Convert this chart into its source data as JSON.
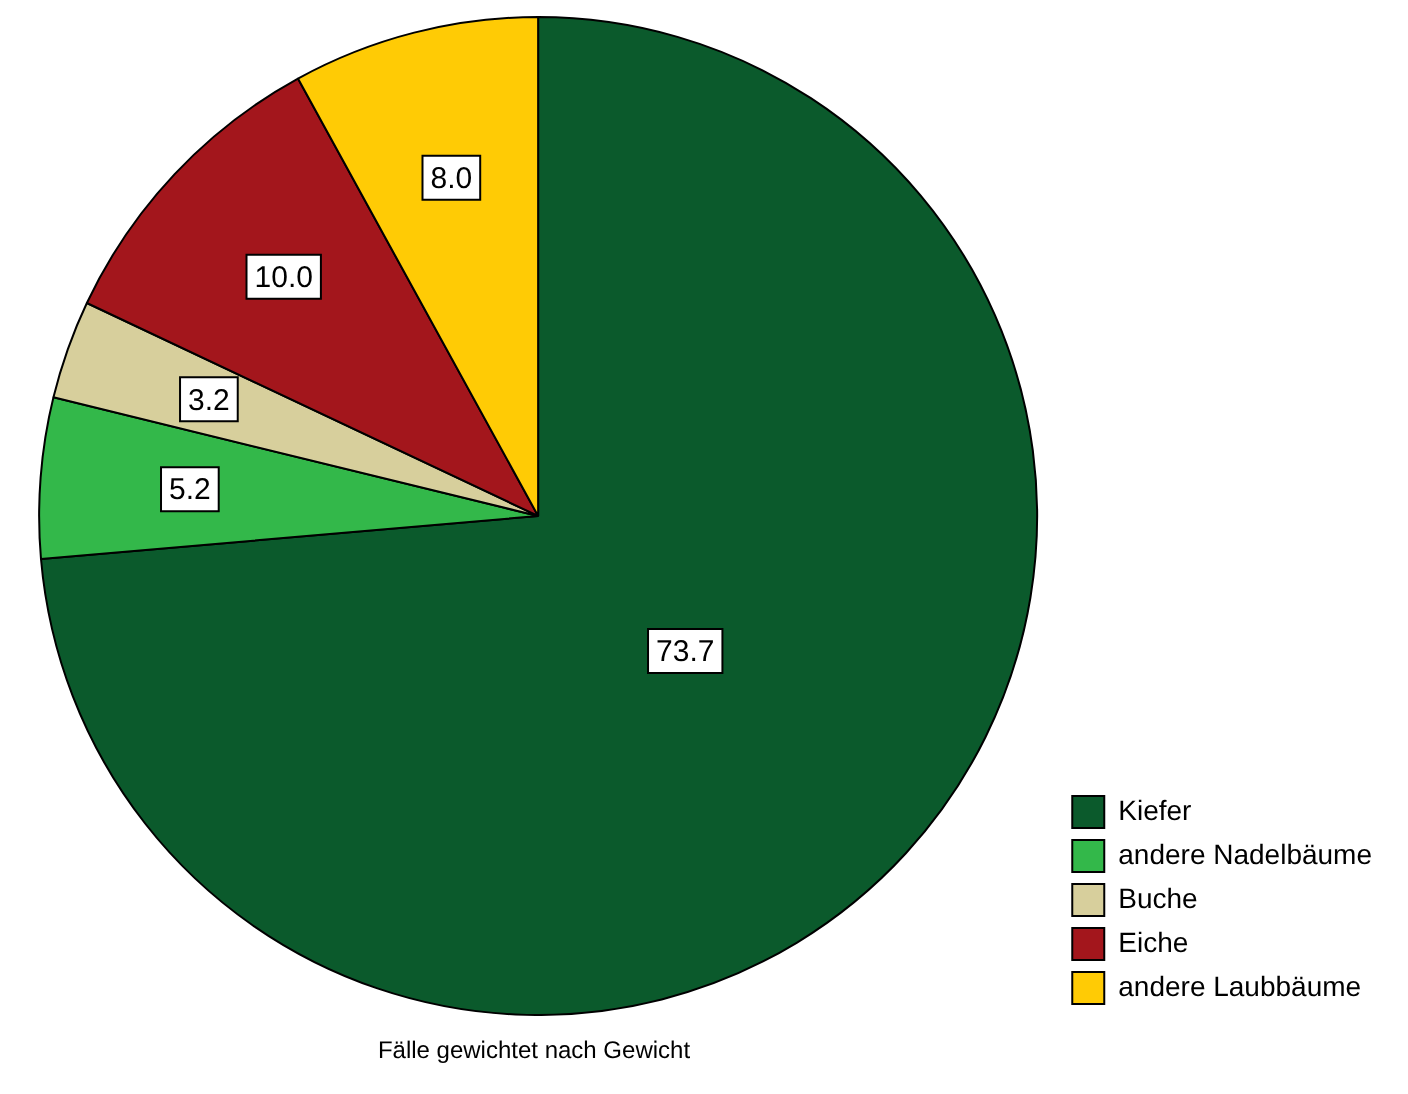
{
  "chart_data": {
    "type": "pie",
    "categories": [
      "Kiefer",
      "andere Nadelbäume",
      "Buche",
      "Eiche",
      "andere Laubbäume"
    ],
    "values": [
      73.7,
      5.2,
      3.2,
      10.0,
      8.0
    ],
    "colors": [
      "#0b5a2c",
      "#33b84a",
      "#d7cf9c",
      "#a3161c",
      "#ffcb05"
    ],
    "value_labels": [
      "73.7",
      "5.2",
      "3.2",
      "10.0",
      "8.0"
    ],
    "legend": "bottom right",
    "annotations": [
      "Fälle gewichtet nach Gewicht"
    ]
  }
}
